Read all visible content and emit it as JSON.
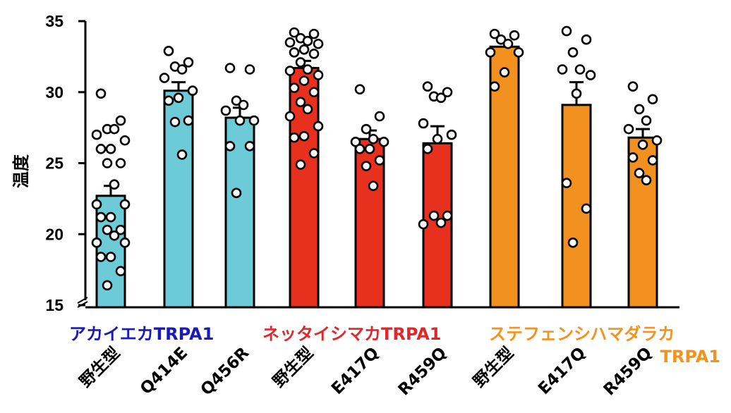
{
  "chart_data": {
    "type": "bar",
    "ylabel": "温度",
    "ylim": [
      15,
      35
    ],
    "yticks": [
      15,
      20,
      25,
      30,
      35
    ],
    "axis_break": true,
    "error_bars": true,
    "categories": [
      "野生型",
      "Q414E",
      "Q456R",
      "野生型",
      "E417Q",
      "R459Q",
      "野生型",
      "E417Q",
      "R459Q"
    ],
    "groups": [
      {
        "name": "アカイエカTRPA1",
        "color": "#1a1ab8",
        "bar_color": "#6ccbd6",
        "bar_indices": [
          0,
          1,
          2
        ]
      },
      {
        "name": "ネッタイシマカTRPA1",
        "color": "#e0282a",
        "bar_color": "#e8301e",
        "bar_indices": [
          3,
          4,
          5
        ]
      },
      {
        "name_line1": "ステフェンシハマダラカ",
        "name_line2": "TRPA1",
        "color": "#f5921e",
        "bar_color": "#f39120",
        "bar_indices": [
          6,
          7,
          8
        ]
      }
    ],
    "values": [
      22.7,
      30.1,
      28.2,
      31.7,
      26.7,
      26.4,
      33.2,
      29.1,
      26.8
    ],
    "errors": [
      0.7,
      0.6,
      0.7,
      0.5,
      0.6,
      1.2,
      0.4,
      1.6,
      0.6
    ],
    "points": [
      [
        29.9,
        28.0,
        27.4,
        27.4,
        27.0,
        26.6,
        26.0,
        26.0,
        25.0,
        25.0,
        23.5,
        22.1,
        22.1,
        21.2,
        21.2,
        20.3,
        20.3,
        19.9,
        19.4,
        19.4,
        18.4,
        18.4,
        17.4,
        16.4
      ],
      [
        32.9,
        32.1,
        31.8,
        31.6,
        31.0,
        30.1,
        29.6,
        29.4,
        28.0,
        27.9,
        25.6
      ],
      [
        31.7,
        31.6,
        29.4,
        29.1,
        28.7,
        28.0,
        28.0,
        26.2,
        26.2,
        22.9
      ],
      [
        34.2,
        34.1,
        33.8,
        33.6,
        33.5,
        33.4,
        33.0,
        32.8,
        32.7,
        32.1,
        31.6,
        31.5,
        31.2,
        30.8,
        30.3,
        30.0,
        29.3,
        28.8,
        28.3,
        27.6,
        26.9,
        26.8,
        25.7,
        24.9
      ],
      [
        30.2,
        28.3,
        27.4,
        26.7,
        26.5,
        26.5,
        26.0,
        26.0,
        25.2,
        24.8,
        23.4
      ],
      [
        30.4,
        30.0,
        29.7,
        29.6,
        27.8,
        27.0,
        26.7,
        26.0,
        21.3,
        21.3,
        20.8,
        20.7
      ],
      [
        34.1,
        34.0,
        33.7,
        33.4,
        32.8,
        32.8,
        31.4,
        30.4
      ],
      [
        34.3,
        33.7,
        32.8,
        31.6,
        31.6,
        31.2,
        29.9,
        23.6,
        21.8,
        19.4
      ],
      [
        30.4,
        29.5,
        28.8,
        28.0,
        27.4,
        26.6,
        26.3,
        25.4,
        25.2,
        24.3,
        23.8
      ]
    ]
  }
}
